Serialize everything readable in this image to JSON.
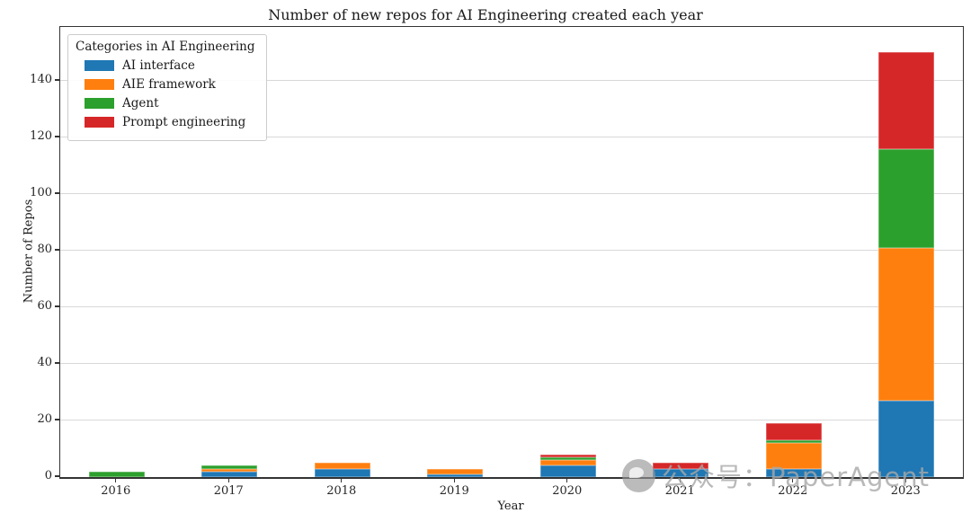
{
  "chart_data": {
    "type": "bar",
    "stacked": true,
    "title": "Number of new repos for AI Engineering created each year",
    "xlabel": "Year",
    "ylabel": "Number of Repos",
    "categories": [
      "2016",
      "2017",
      "2018",
      "2019",
      "2020",
      "2021",
      "2022",
      "2023"
    ],
    "series": [
      {
        "name": "AI interface",
        "color": "#1f77b4",
        "values": [
          0,
          2,
          3,
          1,
          4,
          3,
          3,
          27
        ]
      },
      {
        "name": "AIE framework",
        "color": "#ff7f0e",
        "values": [
          0,
          1,
          2,
          2,
          2,
          0,
          9,
          54
        ]
      },
      {
        "name": "Agent",
        "color": "#2ca02c",
        "values": [
          2,
          1,
          0,
          0,
          1,
          0,
          1,
          35
        ]
      },
      {
        "name": "Prompt engineering",
        "color": "#d62728",
        "values": [
          0,
          0,
          0,
          0,
          1,
          2,
          6,
          34
        ]
      }
    ],
    "totals": [
      2,
      4,
      5,
      3,
      8,
      5,
      19,
      150
    ],
    "ylim": [
      0,
      159
    ],
    "yticks": [
      0,
      20,
      40,
      60,
      80,
      100,
      120,
      140
    ],
    "grid": "horizontal",
    "legend": {
      "title": "Categories in AI Engineering",
      "position": "upper-left"
    }
  },
  "watermark": {
    "icon": "circle-logo",
    "text": "公众号：PaperAgent"
  }
}
